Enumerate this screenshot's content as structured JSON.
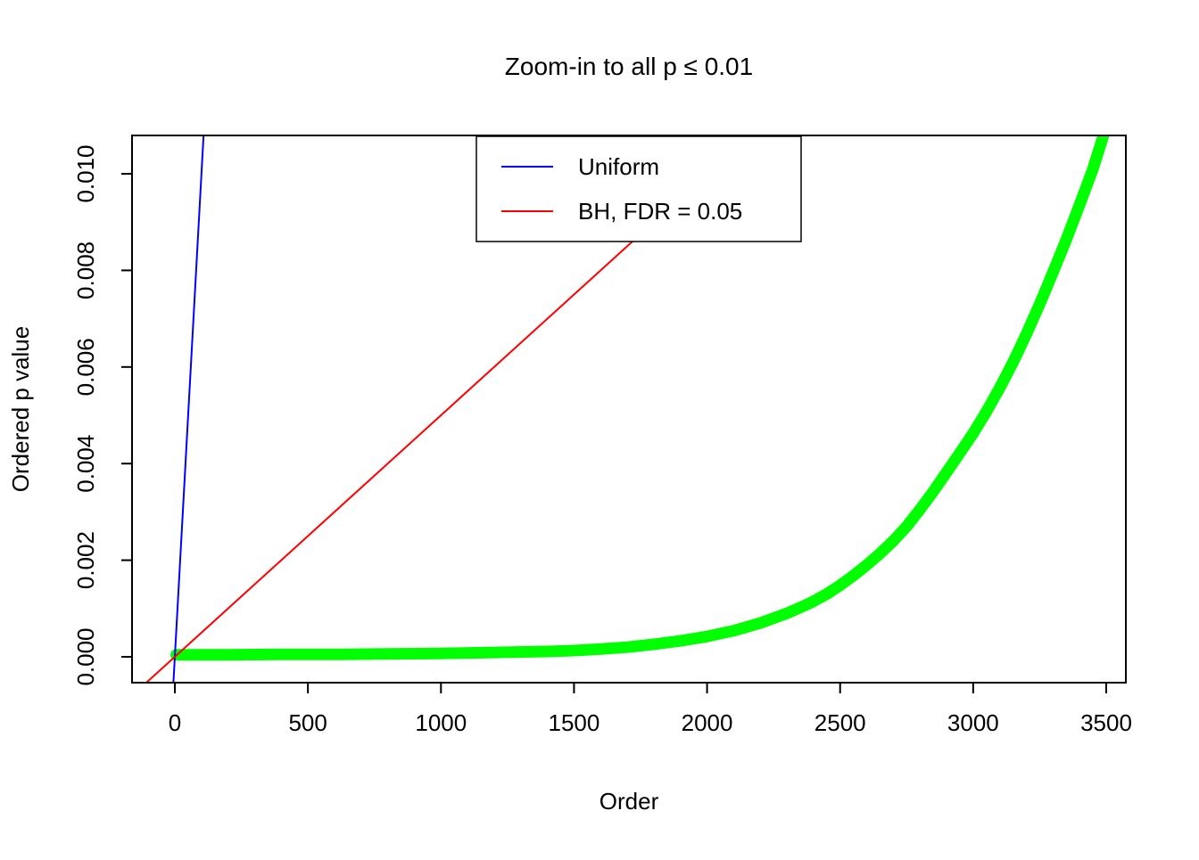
{
  "chart_data": {
    "type": "line",
    "title": "Zoom-in to all p ≤ 0.01",
    "xlabel": "Order",
    "ylabel": "Ordered p value",
    "xlim": [
      -150,
      3600
    ],
    "ylim": [
      -0.00054,
      0.0108
    ],
    "grid": false,
    "x_ticks": [
      0,
      500,
      1000,
      1500,
      2000,
      2500,
      3000,
      3500
    ],
    "x_tick_labels": [
      "0",
      "500",
      "1000",
      "1500",
      "2000",
      "2500",
      "3000",
      "3500"
    ],
    "y_ticks": [
      0.0,
      0.002,
      0.004,
      0.006,
      0.008,
      0.01
    ],
    "y_tick_labels": [
      "0.000",
      "0.002",
      "0.004",
      "0.006",
      "0.008",
      "0.010"
    ],
    "legend": {
      "position": "top-center",
      "entries": [
        {
          "label": "Uniform",
          "color": "#0000ff"
        },
        {
          "label": "BH, FDR = 0.05",
          "color": "#ff0000"
        }
      ]
    },
    "colors": {
      "ordered_p": "#00ff00",
      "uniform": "#0000ff",
      "bh": "#ff0000",
      "axis": "#000000",
      "background": "#ffffff"
    },
    "series": [
      {
        "name": "ordered-p-values",
        "color": "#00ff00",
        "width": 13,
        "points": [
          [
            5,
            4e-05
          ],
          [
            200,
            4e-05
          ],
          [
            400,
            5e-05
          ],
          [
            600,
            5e-05
          ],
          [
            800,
            6e-05
          ],
          [
            1000,
            7e-05
          ],
          [
            1200,
            9e-05
          ],
          [
            1400,
            0.00011
          ],
          [
            1500,
            0.00013
          ],
          [
            1600,
            0.00016
          ],
          [
            1700,
            0.0002
          ],
          [
            1800,
            0.00026
          ],
          [
            1900,
            0.00033
          ],
          [
            2000,
            0.00042
          ],
          [
            2100,
            0.00054
          ],
          [
            2200,
            0.0007
          ],
          [
            2300,
            0.0009
          ],
          [
            2350,
            0.00102
          ],
          [
            2400,
            0.00115
          ],
          [
            2450,
            0.0013
          ],
          [
            2500,
            0.00148
          ],
          [
            2550,
            0.00168
          ],
          [
            2600,
            0.0019
          ],
          [
            2650,
            0.00214
          ],
          [
            2700,
            0.0024
          ],
          [
            2750,
            0.0027
          ],
          [
            2800,
            0.00305
          ],
          [
            2850,
            0.00342
          ],
          [
            2900,
            0.00382
          ],
          [
            2950,
            0.00422
          ],
          [
            3000,
            0.00463
          ],
          [
            3050,
            0.00508
          ],
          [
            3100,
            0.00557
          ],
          [
            3150,
            0.0061
          ],
          [
            3200,
            0.00668
          ],
          [
            3250,
            0.0073
          ],
          [
            3300,
            0.00796
          ],
          [
            3350,
            0.00864
          ],
          [
            3400,
            0.00936
          ],
          [
            3450,
            0.0101
          ],
          [
            3490,
            0.0108
          ]
        ]
      },
      {
        "name": "uniform-line",
        "color": "#0000ff",
        "width": 2,
        "slope": 0.0001,
        "intercept": 0,
        "points": [
          [
            -6,
            -0.0006
          ],
          [
            110,
            0.011
          ]
        ]
      },
      {
        "name": "bh-line",
        "color": "#ff0000",
        "width": 2,
        "slope": 5e-06,
        "intercept": 0,
        "points": [
          [
            -120,
            -0.0006
          ],
          [
            2200,
            0.011
          ]
        ]
      }
    ]
  }
}
